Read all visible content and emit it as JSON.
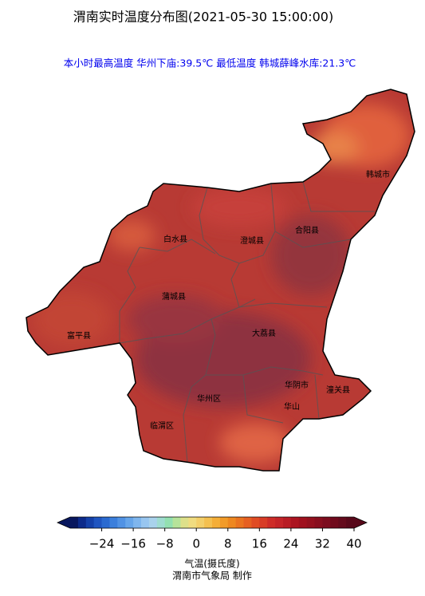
{
  "title": "渭南实时温度分布图(2021-05-30 15:00:00)",
  "subtitle": "本小时最高温度 华州下庙:39.5℃ 最低温度 韩城薛峰水库:21.3℃",
  "regions": [
    "韩城市",
    "白水县",
    "澄城县",
    "合阳县",
    "蒲城县",
    "富平县",
    "大荔县",
    "华阴市",
    "潼关县",
    "华州区",
    "华山",
    "临渭区"
  ],
  "colorbar": {
    "label": "气温(摄氏度)",
    "lim": [
      -32,
      40
    ],
    "ticks": [
      {
        "value": -24,
        "label": "−24"
      },
      {
        "value": -16,
        "label": "−16"
      },
      {
        "value": -8,
        "label": "−8"
      },
      0,
      8,
      16,
      24,
      32,
      40
    ],
    "colors": [
      "#08175e",
      "#0c2a8a",
      "#1440a8",
      "#1f55c0",
      "#2a6ad0",
      "#3b7fdc",
      "#5092e4",
      "#66a5ea",
      "#7fb6ee",
      "#98c6f0",
      "#a9d2ec",
      "#9fdcd0",
      "#93e0b0",
      "#b6e39a",
      "#dde08a",
      "#f0dc80",
      "#f3cf6a",
      "#f4c050",
      "#f4ae38",
      "#f29b28",
      "#ee8820",
      "#ea7420",
      "#e66022",
      "#e04c24",
      "#d83c26",
      "#ce2c28",
      "#c42428",
      "#b81c24",
      "#ac1420",
      "#a0101e",
      "#94101e",
      "#880e1e",
      "#7c0c1e",
      "#700a1c",
      "#640a1c",
      "#58081a"
    ]
  },
  "credit": "渭南市气象局 制作"
}
